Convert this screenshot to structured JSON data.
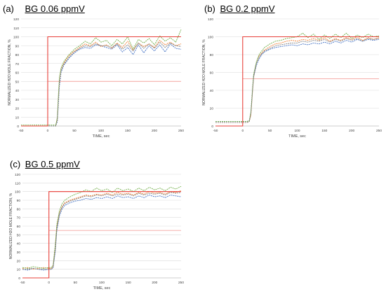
{
  "colors": {
    "step": "#e8413a",
    "ref_line": "#f4a39f",
    "grid": "#d9d9d9",
    "axis": "#bfbfbf",
    "series_blue": "#4472c4",
    "series_orange": "#ed7d31",
    "series_green": "#70ad47",
    "series_gray": "#7f7f7f"
  },
  "chart_data": [
    {
      "id": "a",
      "type": "line",
      "panel_label": "(a)",
      "title_main": "BG  0.06 ppmV",
      "xlabel": "TIME, sec",
      "ylabel": "NORMALIZED H2O MOLE FRACTION, %",
      "xlim": [
        -50,
        250
      ],
      "ylim": [
        0,
        120
      ],
      "xticks": [
        -50,
        0,
        50,
        100,
        150,
        200,
        250
      ],
      "yticks": [
        0,
        10,
        20,
        30,
        40,
        50,
        60,
        70,
        80,
        90,
        100,
        110,
        120
      ],
      "grid": true,
      "step_input": {
        "x": [
          -50,
          0,
          0,
          250
        ],
        "y": [
          0,
          0,
          100,
          100
        ]
      },
      "reference_lines": [
        {
          "y": 100,
          "x_from": 0,
          "x_to": 250
        },
        {
          "y": 50,
          "x_from": 0,
          "x_to": 250
        }
      ],
      "series": [
        {
          "color_key": "series_blue",
          "x": [
            -50,
            0,
            10,
            15,
            18,
            20,
            22,
            25,
            30,
            35,
            40,
            50,
            60,
            70,
            80,
            90,
            100,
            110,
            120,
            130,
            140,
            150,
            160,
            170,
            180,
            190,
            200,
            210,
            220,
            230,
            240,
            250
          ],
          "y": [
            0,
            0,
            0,
            0,
            5,
            25,
            45,
            60,
            68,
            72,
            76,
            82,
            86,
            88,
            87,
            91,
            90,
            88,
            86,
            91,
            83,
            88,
            80,
            91,
            82,
            90,
            84,
            91,
            83,
            92,
            87,
            86
          ]
        },
        {
          "color_key": "series_orange",
          "x": [
            -50,
            0,
            10,
            15,
            18,
            20,
            22,
            25,
            30,
            35,
            40,
            50,
            60,
            70,
            80,
            90,
            100,
            110,
            120,
            130,
            140,
            150,
            160,
            170,
            180,
            190,
            200,
            210,
            220,
            230,
            240,
            250
          ],
          "y": [
            0,
            0,
            0,
            0,
            8,
            30,
            50,
            63,
            70,
            75,
            79,
            84,
            88,
            92,
            90,
            94,
            89,
            91,
            87,
            93,
            88,
            95,
            85,
            93,
            89,
            92,
            88,
            96,
            91,
            94,
            90,
            92
          ]
        },
        {
          "color_key": "series_green",
          "x": [
            -50,
            0,
            10,
            15,
            18,
            20,
            22,
            25,
            30,
            35,
            40,
            50,
            60,
            70,
            80,
            90,
            100,
            110,
            120,
            130,
            140,
            150,
            160,
            170,
            180,
            190,
            200,
            210,
            220,
            230,
            240,
            250
          ],
          "y": [
            1,
            1,
            1,
            1,
            10,
            35,
            55,
            65,
            72,
            76,
            80,
            86,
            90,
            95,
            92,
            99,
            94,
            96,
            90,
            97,
            92,
            100,
            86,
            97,
            93,
            98,
            91,
            101,
            95,
            99,
            94,
            108
          ]
        },
        {
          "color_key": "series_gray",
          "x": [
            -50,
            0,
            10,
            15,
            18,
            20,
            22,
            25,
            30,
            35,
            40,
            50,
            60,
            70,
            80,
            90,
            100,
            110,
            120,
            130,
            140,
            150,
            160,
            170,
            180,
            190,
            200,
            210,
            220,
            230,
            240,
            250
          ],
          "y": [
            0,
            0,
            0,
            0,
            6,
            28,
            48,
            62,
            69,
            73,
            77,
            83,
            87,
            90,
            89,
            92,
            90,
            90,
            88,
            92,
            86,
            91,
            84,
            93,
            87,
            92,
            87,
            94,
            88,
            93,
            90,
            89
          ]
        }
      ]
    },
    {
      "id": "b",
      "type": "line",
      "panel_label": "(b)",
      "title_main": "BG  0.2 ppmV",
      "xlabel": "TIME, sec",
      "ylabel": "NORMALIZED H2O MOLE FRACTION, %",
      "xlim": [
        -50,
        250
      ],
      "ylim": [
        0,
        120
      ],
      "xticks": [
        -50,
        0,
        50,
        100,
        150,
        200,
        250
      ],
      "yticks": [
        0,
        20,
        40,
        60,
        80,
        100,
        120
      ],
      "grid": true,
      "step_input": {
        "x": [
          -50,
          0,
          0,
          250
        ],
        "y": [
          0,
          0,
          100,
          100
        ]
      },
      "reference_lines": [
        {
          "y": 100,
          "x_from": 0,
          "x_to": 250
        },
        {
          "y": 53,
          "x_from": 0,
          "x_to": 250
        }
      ],
      "series": [
        {
          "color_key": "series_blue",
          "x": [
            -50,
            0,
            8,
            12,
            15,
            18,
            20,
            25,
            30,
            35,
            40,
            50,
            60,
            70,
            80,
            90,
            100,
            110,
            120,
            130,
            140,
            150,
            160,
            170,
            180,
            190,
            200,
            210,
            220,
            230,
            240,
            250
          ],
          "y": [
            5,
            5,
            5,
            6,
            15,
            40,
            55,
            68,
            75,
            80,
            83,
            86,
            88,
            89,
            90,
            91,
            90,
            92,
            91,
            93,
            92,
            94,
            92,
            95,
            93,
            96,
            94,
            97,
            95,
            97,
            96,
            97
          ]
        },
        {
          "color_key": "series_orange",
          "x": [
            -50,
            0,
            8,
            12,
            15,
            18,
            20,
            25,
            30,
            35,
            40,
            50,
            60,
            70,
            80,
            90,
            100,
            110,
            120,
            130,
            140,
            150,
            160,
            170,
            180,
            190,
            200,
            210,
            220,
            230,
            240,
            250
          ],
          "y": [
            4,
            4,
            4,
            5,
            12,
            38,
            55,
            70,
            78,
            82,
            85,
            89,
            92,
            93,
            95,
            96,
            95,
            97,
            96,
            98,
            96,
            99,
            95,
            98,
            96,
            99,
            97,
            100,
            96,
            99,
            97,
            99
          ]
        },
        {
          "color_key": "series_green",
          "x": [
            -50,
            0,
            8,
            12,
            15,
            18,
            20,
            25,
            30,
            35,
            40,
            50,
            60,
            70,
            80,
            90,
            100,
            110,
            120,
            130,
            140,
            150,
            160,
            170,
            180,
            190,
            200,
            210,
            220,
            230,
            240,
            250
          ],
          "y": [
            5,
            5,
            5,
            6,
            16,
            42,
            58,
            72,
            80,
            84,
            88,
            92,
            95,
            96,
            98,
            99,
            100,
            104,
            99,
            103,
            97,
            102,
            98,
            103,
            99,
            104,
            98,
            102,
            99,
            103,
            100,
            101
          ]
        },
        {
          "color_key": "series_gray",
          "x": [
            -50,
            0,
            8,
            12,
            15,
            18,
            20,
            25,
            30,
            35,
            40,
            50,
            60,
            70,
            80,
            90,
            100,
            110,
            120,
            130,
            140,
            150,
            160,
            170,
            180,
            190,
            200,
            210,
            220,
            230,
            240,
            250
          ],
          "y": [
            4,
            4,
            4,
            5,
            14,
            40,
            56,
            70,
            77,
            81,
            84,
            87,
            90,
            91,
            92,
            93,
            93,
            95,
            94,
            96,
            95,
            97,
            94,
            97,
            95,
            98,
            96,
            98,
            95,
            98,
            97,
            98
          ]
        }
      ]
    },
    {
      "id": "c",
      "type": "line",
      "panel_label": "(c)",
      "title_main": "BG  0.5 ppmV",
      "xlabel": "TIME, sec",
      "ylabel": "NORMALIZED H2O MOLE FRACTION, %",
      "xlim": [
        -50,
        250
      ],
      "ylim": [
        0,
        120
      ],
      "xticks": [
        -50,
        0,
        50,
        100,
        150,
        200,
        250
      ],
      "yticks": [
        0,
        10,
        20,
        30,
        40,
        50,
        60,
        70,
        80,
        90,
        100,
        110,
        120
      ],
      "grid": true,
      "step_input": {
        "x": [
          -50,
          0,
          0,
          250
        ],
        "y": [
          0,
          0,
          100,
          100
        ]
      },
      "reference_lines": [
        {
          "y": 100,
          "x_from": 0,
          "x_to": 250
        },
        {
          "y": 55,
          "x_from": 0,
          "x_to": 250
        }
      ],
      "series": [
        {
          "color_key": "series_blue",
          "x": [
            -50,
            -40,
            -30,
            -20,
            -10,
            0,
            5,
            8,
            12,
            15,
            20,
            25,
            30,
            40,
            50,
            60,
            70,
            80,
            90,
            100,
            110,
            120,
            130,
            140,
            150,
            160,
            170,
            180,
            190,
            200,
            210,
            220,
            230,
            240,
            250
          ],
          "y": [
            10,
            9,
            11,
            10,
            9,
            10,
            10,
            12,
            30,
            55,
            72,
            80,
            84,
            87,
            89,
            90,
            92,
            91,
            93,
            92,
            94,
            92,
            95,
            93,
            94,
            92,
            95,
            93,
            96,
            94,
            95,
            93,
            96,
            95,
            94
          ]
        },
        {
          "color_key": "series_orange",
          "x": [
            -50,
            -40,
            -30,
            -20,
            -10,
            0,
            5,
            8,
            12,
            15,
            20,
            25,
            30,
            40,
            50,
            60,
            70,
            80,
            90,
            100,
            110,
            120,
            130,
            140,
            150,
            160,
            170,
            180,
            190,
            200,
            210,
            220,
            230,
            240,
            250
          ],
          "y": [
            11,
            12,
            10,
            11,
            12,
            11,
            11,
            14,
            35,
            60,
            75,
            83,
            87,
            90,
            92,
            94,
            96,
            95,
            97,
            96,
            98,
            96,
            99,
            97,
            98,
            96,
            99,
            97,
            100,
            98,
            99,
            97,
            100,
            99,
            101
          ]
        },
        {
          "color_key": "series_green",
          "x": [
            -50,
            -40,
            -30,
            -20,
            -10,
            0,
            5,
            8,
            12,
            15,
            20,
            25,
            30,
            40,
            50,
            60,
            70,
            80,
            90,
            100,
            110,
            120,
            130,
            140,
            150,
            160,
            170,
            180,
            190,
            200,
            210,
            220,
            230,
            240,
            250
          ],
          "y": [
            12,
            11,
            13,
            12,
            11,
            12,
            12,
            15,
            38,
            62,
            78,
            86,
            90,
            94,
            97,
            99,
            102,
            100,
            104,
            101,
            103,
            99,
            104,
            101,
            103,
            100,
            104,
            101,
            105,
            102,
            104,
            101,
            105,
            103,
            106
          ]
        },
        {
          "color_key": "series_gray",
          "x": [
            -50,
            -40,
            -30,
            -20,
            -10,
            0,
            5,
            8,
            12,
            15,
            20,
            25,
            30,
            40,
            50,
            60,
            70,
            80,
            90,
            100,
            110,
            120,
            130,
            140,
            150,
            160,
            170,
            180,
            190,
            200,
            210,
            220,
            230,
            240,
            250
          ],
          "y": [
            10,
            10,
            11,
            10,
            10,
            10,
            10,
            13,
            32,
            57,
            74,
            82,
            86,
            89,
            91,
            93,
            95,
            94,
            96,
            95,
            97,
            95,
            97,
            96,
            97,
            95,
            98,
            96,
            98,
            97,
            98,
            96,
            99,
            98,
            99
          ]
        }
      ]
    }
  ]
}
